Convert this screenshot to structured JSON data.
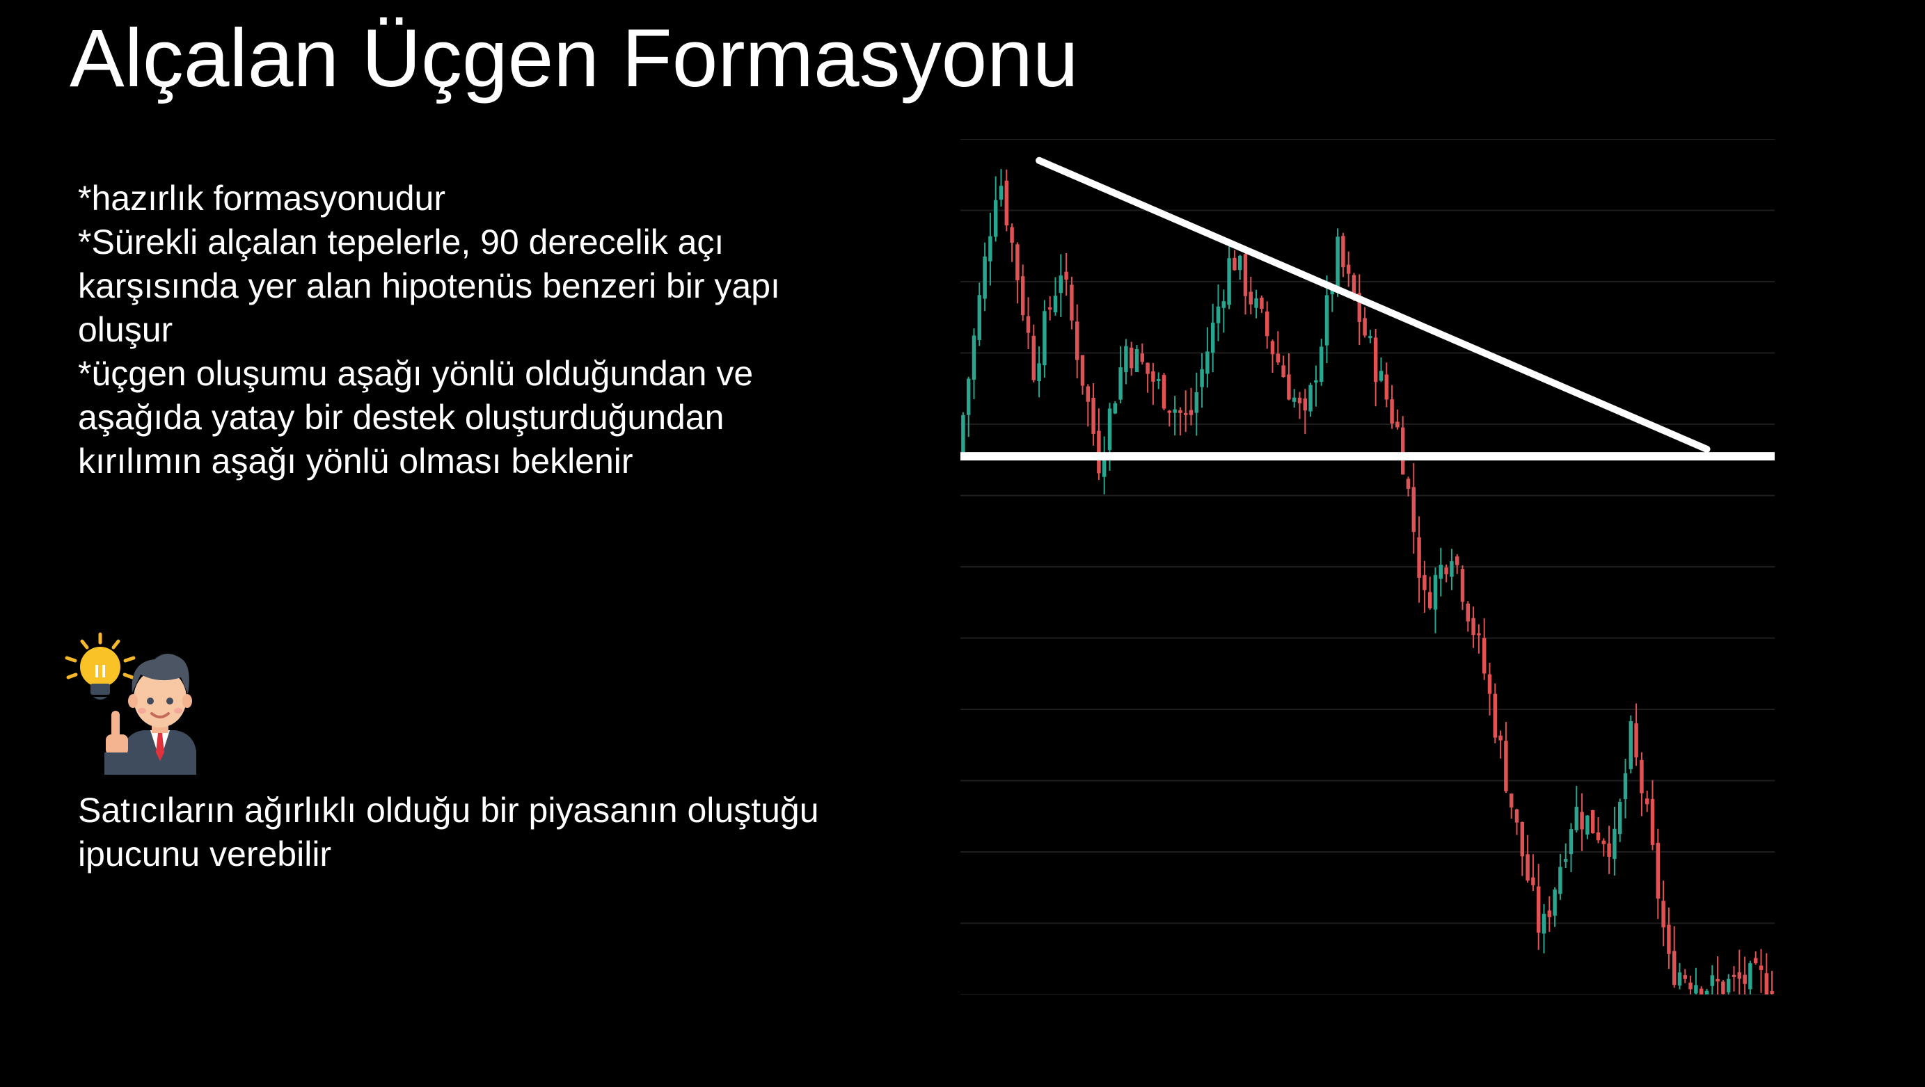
{
  "page": {
    "title": "Alçalan Üçgen Formasyonu",
    "bullets": [
      "*hazırlık formasyonudur",
      "*Sürekli alçalan tepelerle, 90 derecelik açı\nkarşısında yer alan hipotenüs benzeri bir yapı\noluşur",
      "*üçgen oluşumu aşağı yönlü olduğundan ve\naşağıda yatay bir destek oluşturduğundan\nkırılımın aşağı yönlü olması beklenir"
    ],
    "caption": "Satıcıların ağırlıklı olduğu bir piyasanın\noluştuğu ipucunu verebilir",
    "illustration_icon": "businessman-lightbulb-icon"
  },
  "colors": {
    "background": "#000000",
    "text": "#ffffff",
    "bear": "#e05254",
    "bull": "#2aa58f",
    "trendline": "#ffffff",
    "grid": "#1e1e1e"
  },
  "chart_data": {
    "type": "candlestick",
    "title": "",
    "xlabel": "",
    "ylabel": "",
    "grid": true,
    "ylim": [
      0,
      12
    ],
    "x_count": 150,
    "path": [
      [
        0,
        7.6
      ],
      [
        15,
        11.6
      ],
      [
        28,
        8.8
      ],
      [
        38,
        10.2
      ],
      [
        52,
        7.5
      ],
      [
        62,
        9.1
      ],
      [
        85,
        8.0
      ],
      [
        101,
        10.4
      ],
      [
        128,
        8.0
      ],
      [
        140,
        10.4
      ],
      [
        163,
        7.8
      ],
      [
        172,
        5.5
      ],
      [
        182,
        6.3
      ],
      [
        193,
        4.7
      ],
      [
        198,
        3.8
      ],
      [
        206,
        2.3
      ],
      [
        215,
        0.8
      ],
      [
        227,
        2.6
      ],
      [
        242,
        2.1
      ],
      [
        248,
        3.6
      ],
      [
        253,
        2.7
      ],
      [
        262,
        0.4
      ],
      [
        278,
        0.1
      ],
      [
        290,
        0.2
      ]
    ],
    "bar_span": 300,
    "resistance_line": {
      "x": [
        14.5,
        137.5
      ],
      "y": [
        11.7,
        7.65
      ]
    },
    "support_line": {
      "x": [
        0,
        150
      ],
      "y": 7.55
    }
  }
}
